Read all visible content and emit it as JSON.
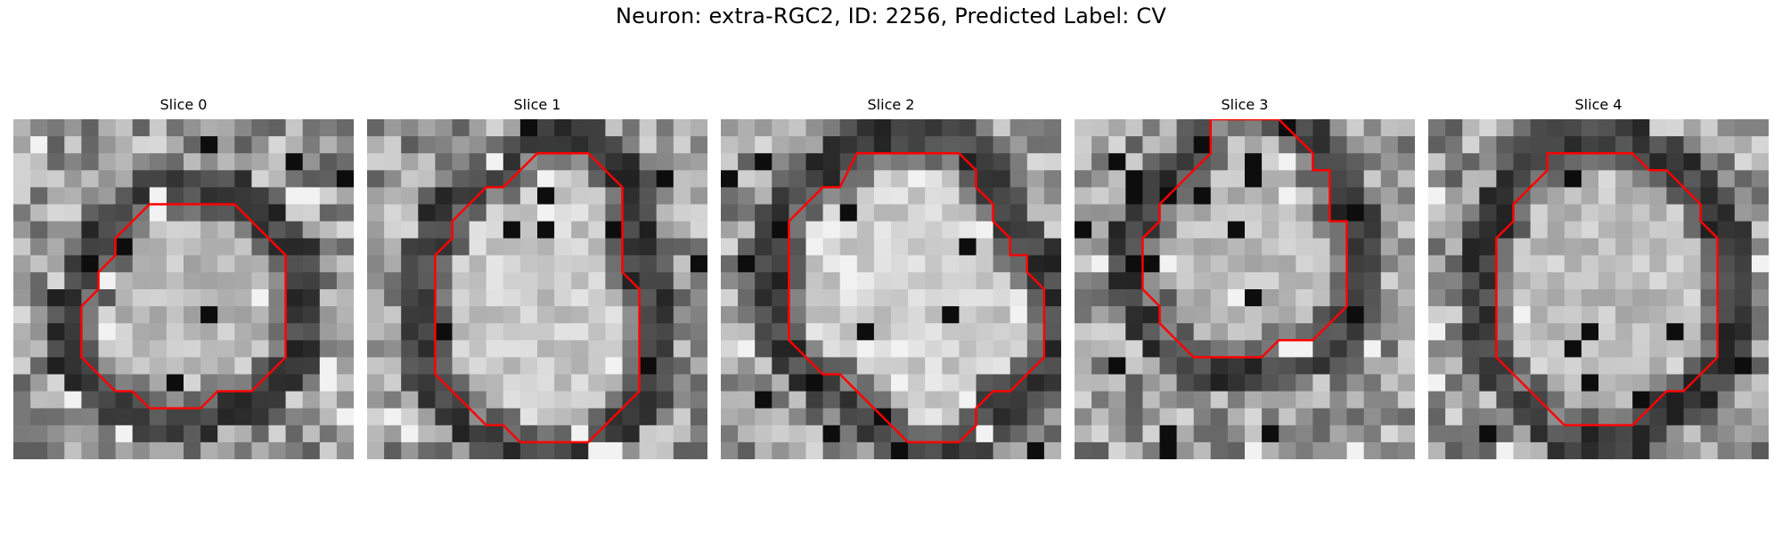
{
  "figure": {
    "title": "Neuron: extra-RGC2, ID: 2256, Predicted Label: CV"
  },
  "image_description_colors": {
    "contour": "#ff0000",
    "background": "#ffffff",
    "colormap": "grayscale"
  },
  "panels": [
    {
      "title": "Slice 0",
      "cell_level": 0.72,
      "contour": [
        [
          11,
          5
        ],
        [
          13,
          5
        ],
        [
          16,
          8
        ],
        [
          16,
          14
        ],
        [
          14,
          16
        ],
        [
          12,
          16
        ],
        [
          11,
          17
        ],
        [
          8,
          17
        ],
        [
          7,
          16
        ],
        [
          6,
          16
        ],
        [
          4,
          14
        ],
        [
          4,
          11
        ],
        [
          5,
          10
        ],
        [
          5,
          9
        ],
        [
          6,
          8
        ],
        [
          6,
          7
        ],
        [
          8,
          5
        ]
      ]
    },
    {
      "title": "Slice 1",
      "cell_level": 0.78,
      "contour": [
        [
          10,
          2
        ],
        [
          13,
          2
        ],
        [
          15,
          4
        ],
        [
          15,
          9
        ],
        [
          16,
          10
        ],
        [
          16,
          16
        ],
        [
          14,
          18
        ],
        [
          13,
          19
        ],
        [
          9,
          19
        ],
        [
          8,
          18
        ],
        [
          7,
          18
        ],
        [
          4,
          15
        ],
        [
          4,
          8
        ],
        [
          5,
          7
        ],
        [
          5,
          6
        ],
        [
          7,
          4
        ],
        [
          8,
          4
        ],
        [
          9,
          3
        ]
      ]
    },
    {
      "title": "Slice 2",
      "cell_level": 0.8,
      "contour": [
        [
          8,
          2
        ],
        [
          14,
          2
        ],
        [
          15,
          3
        ],
        [
          15,
          4
        ],
        [
          16,
          5
        ],
        [
          16,
          6
        ],
        [
          17,
          7
        ],
        [
          17,
          8
        ],
        [
          18,
          8
        ],
        [
          18,
          9
        ],
        [
          19,
          10
        ],
        [
          19,
          14
        ],
        [
          18,
          15
        ],
        [
          17,
          16
        ],
        [
          16,
          16
        ],
        [
          15,
          17
        ],
        [
          15,
          18
        ],
        [
          14,
          19
        ],
        [
          12,
          19
        ],
        [
          11,
          19
        ],
        [
          10,
          18
        ],
        [
          9,
          17
        ],
        [
          8,
          16
        ],
        [
          7,
          15
        ],
        [
          6,
          15
        ],
        [
          4,
          13
        ],
        [
          4,
          6
        ],
        [
          6,
          4
        ],
        [
          7,
          4
        ]
      ]
    },
    {
      "title": "Slice 3",
      "cell_level": 0.72,
      "contour": [
        [
          8,
          0
        ],
        [
          12,
          0
        ],
        [
          14,
          2
        ],
        [
          14,
          3
        ],
        [
          15,
          3
        ],
        [
          15,
          4
        ],
        [
          15,
          5
        ],
        [
          15,
          6
        ],
        [
          16,
          6
        ],
        [
          16,
          11
        ],
        [
          15,
          12
        ],
        [
          14,
          13
        ],
        [
          12,
          13
        ],
        [
          11,
          14
        ],
        [
          7,
          14
        ],
        [
          5,
          12
        ],
        [
          5,
          11
        ],
        [
          4,
          10
        ],
        [
          4,
          7
        ],
        [
          5,
          6
        ],
        [
          5,
          5
        ],
        [
          6,
          4
        ],
        [
          7,
          3
        ],
        [
          8,
          2
        ]
      ]
    },
    {
      "title": "Slice 4",
      "cell_level": 0.74,
      "contour": [
        [
          7,
          2
        ],
        [
          12,
          2
        ],
        [
          13,
          3
        ],
        [
          14,
          3
        ],
        [
          15,
          4
        ],
        [
          16,
          5
        ],
        [
          16,
          6
        ],
        [
          17,
          7
        ],
        [
          17,
          14
        ],
        [
          16,
          15
        ],
        [
          15,
          16
        ],
        [
          14,
          16
        ],
        [
          12,
          18
        ],
        [
          8,
          18
        ],
        [
          4,
          14
        ],
        [
          4,
          7
        ],
        [
          5,
          6
        ],
        [
          5,
          5
        ],
        [
          7,
          3
        ]
      ]
    }
  ]
}
